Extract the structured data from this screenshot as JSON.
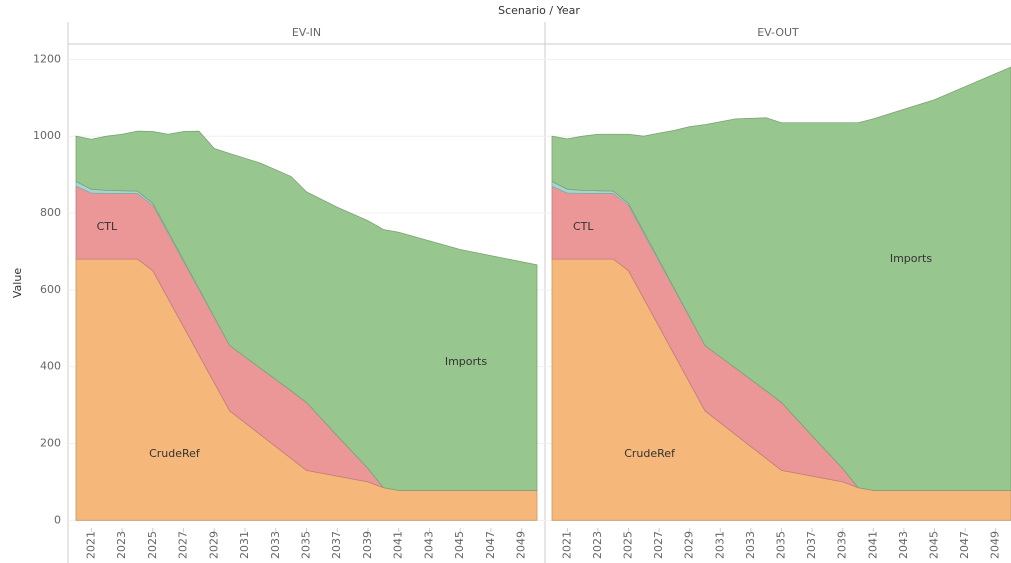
{
  "chart_data": [
    {
      "type": "area",
      "header": "Scenario / Year",
      "ylabel": "Value",
      "title": "EV-IN",
      "x": [
        2020,
        2021,
        2022,
        2023,
        2024,
        2025,
        2026,
        2027,
        2028,
        2029,
        2030,
        2032,
        2034,
        2035,
        2037,
        2039,
        2040,
        2041,
        2045,
        2050
      ],
      "series": [
        {
          "name": "CrudeRef",
          "color": "#f5b77a",
          "values": [
            680,
            680,
            680,
            680,
            680,
            650,
            577,
            504,
            431,
            358,
            285,
            223,
            161,
            130,
            115,
            100,
            85,
            78,
            78,
            78
          ]
        },
        {
          "name": "CTL",
          "color": "#eb9798",
          "values": [
            190,
            172,
            171,
            171,
            171,
            170,
            170,
            170,
            170,
            170,
            170,
            173,
            176,
            177,
            105,
            35,
            0,
            0,
            0,
            0
          ]
        },
        {
          "color": "#a3d6d2",
          "values": [
            12,
            10,
            8,
            7,
            6,
            5,
            4,
            3,
            2,
            1,
            0,
            0,
            0,
            0,
            0,
            0,
            0,
            0,
            0,
            0
          ]
        },
        {
          "name": "Imports",
          "color": "#98c68f",
          "values": [
            118,
            130,
            141,
            147,
            156,
            187,
            254,
            335,
            410,
            439,
            500,
            534,
            558,
            548,
            595,
            645,
            672,
            672,
            627,
            587
          ]
        }
      ],
      "xlim": [
        2020,
        2050
      ],
      "xticks": [
        2021,
        2023,
        2025,
        2027,
        2029,
        2031,
        2033,
        2035,
        2037,
        2039,
        2041,
        2043,
        2045,
        2047,
        2049
      ],
      "ylim": [
        -20,
        1240
      ],
      "yticks": [
        0,
        200,
        400,
        600,
        800,
        1000,
        1200
      ],
      "grid": true
    },
    {
      "type": "area",
      "title": "EV-OUT",
      "x": [
        2020,
        2021,
        2022,
        2023,
        2024,
        2025,
        2026,
        2027,
        2028,
        2029,
        2030,
        2032,
        2034,
        2035,
        2037,
        2039,
        2040,
        2041,
        2045,
        2050
      ],
      "series": [
        {
          "name": "CrudeRef",
          "color": "#f5b77a",
          "values": [
            680,
            680,
            680,
            680,
            680,
            650,
            577,
            504,
            431,
            358,
            285,
            223,
            161,
            130,
            115,
            100,
            85,
            78,
            78,
            78
          ]
        },
        {
          "name": "CTL",
          "color": "#eb9798",
          "values": [
            190,
            172,
            171,
            171,
            171,
            170,
            170,
            170,
            170,
            170,
            170,
            173,
            176,
            177,
            105,
            35,
            0,
            0,
            0,
            0
          ]
        },
        {
          "color": "#a3d6d2",
          "values": [
            12,
            10,
            8,
            7,
            6,
            5,
            4,
            3,
            2,
            1,
            0,
            0,
            0,
            0,
            0,
            0,
            0,
            0,
            0,
            0
          ]
        },
        {
          "name": "Imports",
          "color": "#98c68f",
          "values": [
            118,
            131,
            141,
            147,
            148,
            180,
            249,
            331,
            412,
            496,
            575,
            649,
            711,
            728,
            815,
            900,
            950,
            967,
            1017,
            1102
          ]
        }
      ],
      "xlim": [
        2020,
        2050
      ],
      "xticks": [
        2021,
        2023,
        2025,
        2027,
        2029,
        2031,
        2033,
        2035,
        2037,
        2039,
        2041,
        2043,
        2045,
        2047,
        2049
      ],
      "ylim": [
        -20,
        1240
      ],
      "yticks": [
        0,
        200,
        400,
        600,
        800,
        1000,
        1200
      ],
      "grid": true
    }
  ]
}
